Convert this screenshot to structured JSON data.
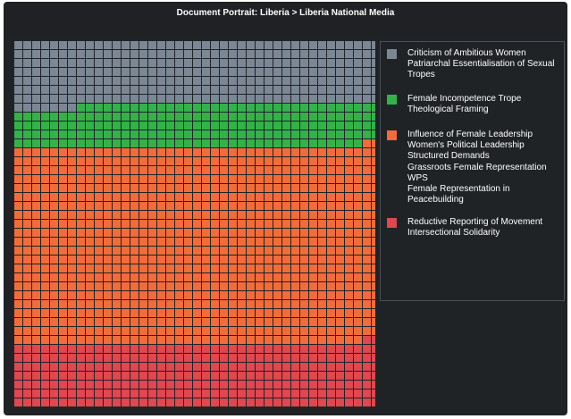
{
  "title": "Document Portrait: Liberia > Liberia National Media",
  "chart_data": {
    "type": "waffle",
    "grid": {
      "columns": 41,
      "rows": 41,
      "total_cells": 1681
    },
    "series": [
      {
        "name": "Criticism of Ambitious Women",
        "labels": [
          "Criticism of Ambitious Women",
          "Patriarchal Essentialisation of Sexual Tropes"
        ],
        "color": "#7b8794",
        "cells": 294
      },
      {
        "name": "Female Incompetence Trope",
        "labels": [
          "Female Incompetence Trope",
          "Theological Framing"
        ],
        "color": "#33b24b",
        "cells": 196
      },
      {
        "name": "Influence of Female Leadership",
        "labels": [
          "Influence of Female Leadership",
          "Women's Political Leadership",
          "Structured Demands",
          "Grassroots Female Representation",
          "WPS",
          "Female Representation in Peacebuilding"
        ],
        "color": "#f26c3a",
        "cells": 902
      },
      {
        "name": "Reductive Reporting of Movement",
        "labels": [
          "Reductive Reporting of Movement",
          "Intersectional Solidarity"
        ],
        "color": "#e0474f",
        "cells": 289
      }
    ],
    "legend_position": "right"
  }
}
